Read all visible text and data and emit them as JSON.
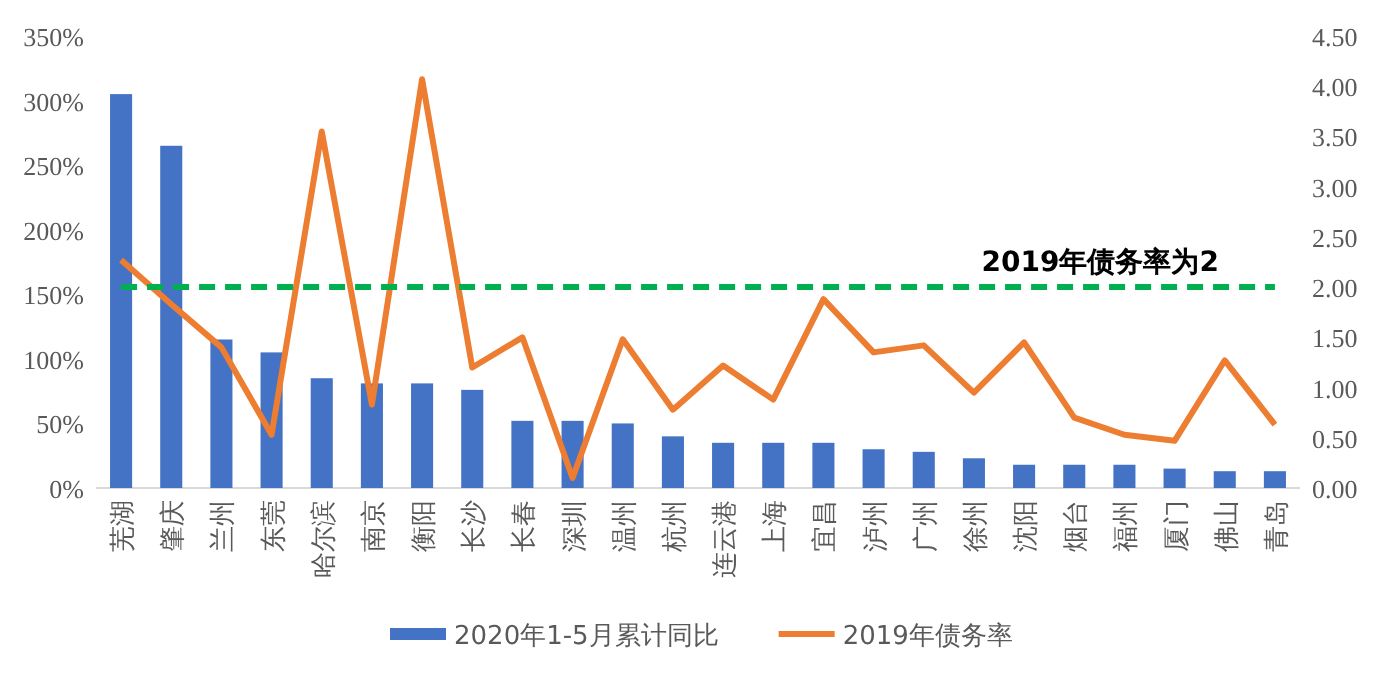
{
  "chart_data": {
    "type": "bar",
    "categories": [
      "芜湖",
      "肇庆",
      "兰州",
      "东莞",
      "哈尔滨",
      "南京",
      "衡阳",
      "长沙",
      "长春",
      "深圳",
      "温州",
      "杭州",
      "连云港",
      "上海",
      "宜昌",
      "泸州",
      "广州",
      "徐州",
      "沈阳",
      "烟台",
      "福州",
      "厦门",
      "佛山",
      "青岛"
    ],
    "series": [
      {
        "name": "2020年1-5月累计同比",
        "color": "#4472c4",
        "values": [
          305,
          265,
          115,
          105,
          85,
          81,
          81,
          76,
          52,
          52,
          50,
          40,
          35,
          35,
          35,
          30,
          28,
          23,
          18,
          18,
          18,
          15,
          13,
          13
        ]
      },
      {
        "name": "2019年债务率",
        "color": "#ed7d31",
        "type": "line",
        "axis": "y2",
        "values": [
          2.27,
          1.83,
          1.4,
          0.53,
          3.55,
          0.83,
          4.07,
          1.2,
          1.5,
          0.1,
          1.48,
          0.78,
          1.22,
          0.88,
          1.88,
          1.35,
          1.42,
          0.95,
          1.45,
          0.7,
          0.53,
          0.47,
          1.27,
          0.63
        ]
      }
    ],
    "ylim": [
      0,
      350
    ],
    "yticks": [
      {
        "value": 0,
        "label": "0%"
      },
      {
        "value": 50,
        "label": "50%"
      },
      {
        "value": 100,
        "label": "100%"
      },
      {
        "value": 150,
        "label": "150%"
      },
      {
        "value": 200,
        "label": "200%"
      },
      {
        "value": 250,
        "label": "250%"
      },
      {
        "value": 300,
        "label": "300%"
      },
      {
        "value": 350,
        "label": "350%"
      }
    ],
    "y2lim": [
      0,
      4.5
    ],
    "y2ticks": [
      {
        "value": 0,
        "label": "0.00"
      },
      {
        "value": 0.5,
        "label": "0.50"
      },
      {
        "value": 1,
        "label": "1.00"
      },
      {
        "value": 1.5,
        "label": "1.50"
      },
      {
        "value": 2,
        "label": "2.00"
      },
      {
        "value": 2.5,
        "label": "2.50"
      },
      {
        "value": 3,
        "label": "3.00"
      },
      {
        "value": 3.5,
        "label": "3.50"
      },
      {
        "value": 4,
        "label": "4.00"
      },
      {
        "value": 4.5,
        "label": "4.50"
      }
    ],
    "ref_lines": [
      {
        "axis": "y2",
        "value": 2,
        "label": "2019年债务率为2",
        "color": "#00b050",
        "line_style": "dashed"
      }
    ],
    "legend": "bottom",
    "grid": false
  }
}
